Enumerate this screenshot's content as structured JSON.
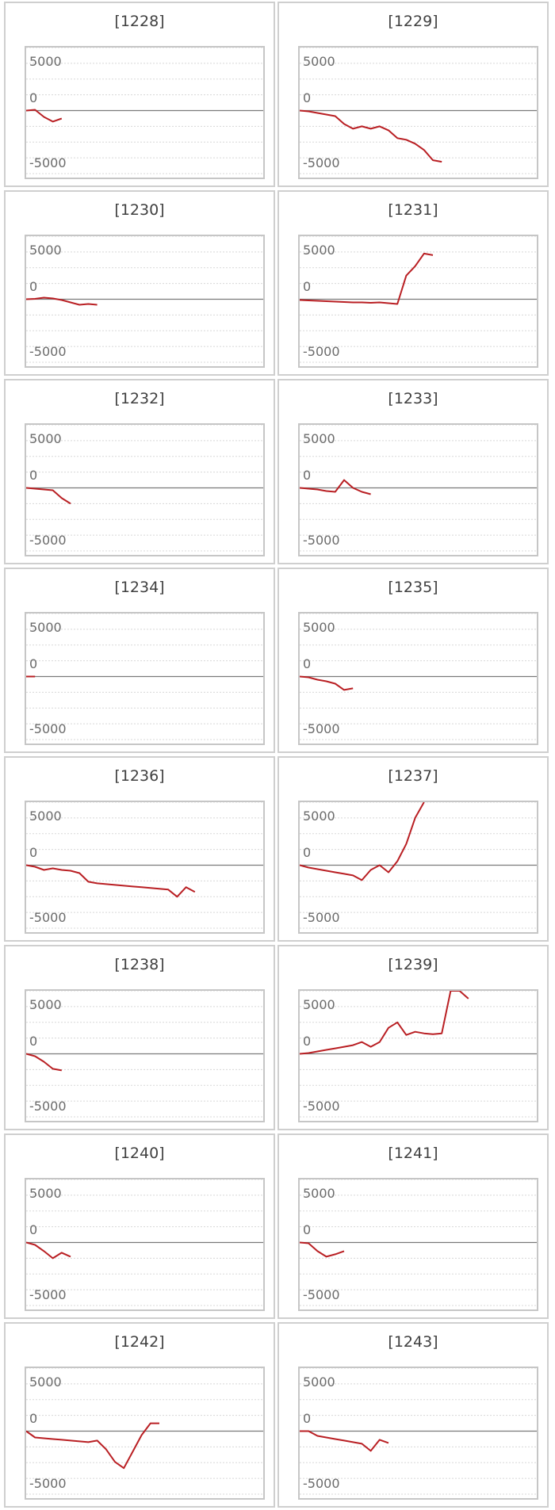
{
  "chart_data": [
    {
      "type": "line",
      "title": "[1228]",
      "ytick_labels": [
        "5000",
        "0",
        "-5000"
      ],
      "ylim": [
        -8500,
        8000
      ],
      "series": [
        {
          "values": [
            0,
            100,
            -800,
            -1400,
            -1000
          ]
        }
      ]
    },
    {
      "type": "line",
      "title": "[1229]",
      "ytick_labels": [
        "5000",
        "0",
        "-5000"
      ],
      "ylim": [
        -8500,
        8000
      ],
      "series": [
        {
          "values": [
            0,
            -100,
            -300,
            -500,
            -700,
            -1700,
            -2300,
            -2000,
            -2300,
            -2000,
            -2500,
            -3500,
            -3700,
            -4200,
            -5000,
            -6300,
            -6500
          ]
        }
      ]
    },
    {
      "type": "line",
      "title": "[1230]",
      "ytick_labels": [
        "5000",
        "0",
        "-5000"
      ],
      "ylim": [
        -8500,
        8000
      ],
      "series": [
        {
          "values": [
            0,
            50,
            200,
            100,
            -100,
            -400,
            -700,
            -600,
            -700
          ]
        }
      ]
    },
    {
      "type": "line",
      "title": "[1231]",
      "ytick_labels": [
        "5000",
        "0",
        "-5000"
      ],
      "ylim": [
        -8500,
        8000
      ],
      "series": [
        {
          "values": [
            -100,
            -150,
            -200,
            -250,
            -300,
            -350,
            -400,
            -400,
            -450,
            -400,
            -500,
            -600,
            3000,
            4200,
            5800,
            5600
          ]
        }
      ]
    },
    {
      "type": "line",
      "title": "[1232]",
      "ytick_labels": [
        "5000",
        "0",
        "-5000"
      ],
      "ylim": [
        -8500,
        8000
      ],
      "series": [
        {
          "values": [
            0,
            -100,
            -200,
            -300,
            -1300,
            -2000
          ]
        }
      ]
    },
    {
      "type": "line",
      "title": "[1233]",
      "ytick_labels": [
        "5000",
        "0",
        "-5000"
      ],
      "ylim": [
        -8500,
        8000
      ],
      "series": [
        {
          "values": [
            0,
            -100,
            -200,
            -400,
            -500,
            1000,
            0,
            -500,
            -800
          ]
        }
      ]
    },
    {
      "type": "line",
      "title": "[1234]",
      "ytick_labels": [
        "5000",
        "0",
        "-5000"
      ],
      "ylim": [
        -8500,
        8000
      ],
      "series": [
        {
          "values": [
            0,
            0
          ]
        }
      ]
    },
    {
      "type": "line",
      "title": "[1235]",
      "ytick_labels": [
        "5000",
        "0",
        "-5000"
      ],
      "ylim": [
        -8500,
        8000
      ],
      "series": [
        {
          "values": [
            0,
            -100,
            -400,
            -600,
            -900,
            -1700,
            -1500
          ]
        }
      ]
    },
    {
      "type": "line",
      "title": "[1236]",
      "ytick_labels": [
        "5000",
        "0",
        "-5000"
      ],
      "ylim": [
        -8500,
        8000
      ],
      "series": [
        {
          "values": [
            0,
            -200,
            -600,
            -400,
            -600,
            -700,
            -1000,
            -2100,
            -2300,
            -2400,
            -2500,
            -2600,
            -2700,
            -2800,
            -2900,
            -3000,
            -3100,
            -4000,
            -2800,
            -3400
          ]
        }
      ]
    },
    {
      "type": "line",
      "title": "[1237]",
      "ytick_labels": [
        "5000",
        "0",
        "-5000"
      ],
      "ylim": [
        -8500,
        8000
      ],
      "series": [
        {
          "values": [
            0,
            -300,
            -500,
            -700,
            -900,
            -1100,
            -1300,
            -1900,
            -600,
            0,
            -900,
            500,
            2700,
            6000,
            8000
          ]
        }
      ]
    },
    {
      "type": "line",
      "title": "[1238]",
      "ytick_labels": [
        "5000",
        "0",
        "-5000"
      ],
      "ylim": [
        -8500,
        8000
      ],
      "series": [
        {
          "values": [
            0,
            -300,
            -1000,
            -1900,
            -2100
          ]
        }
      ]
    },
    {
      "type": "line",
      "title": "[1239]",
      "ytick_labels": [
        "5000",
        "0",
        "-5000"
      ],
      "ylim": [
        -8500,
        8000
      ],
      "series": [
        {
          "values": [
            0,
            100,
            300,
            500,
            700,
            900,
            1100,
            1500,
            900,
            1500,
            3300,
            4000,
            2400,
            2800,
            2600,
            2500,
            2600,
            8000,
            8000,
            7000
          ]
        }
      ]
    },
    {
      "type": "line",
      "title": "[1240]",
      "ytick_labels": [
        "5000",
        "0",
        "-5000"
      ],
      "ylim": [
        -8500,
        8000
      ],
      "series": [
        {
          "values": [
            0,
            -300,
            -1100,
            -2000,
            -1300,
            -1800
          ]
        }
      ]
    },
    {
      "type": "line",
      "title": "[1241]",
      "ytick_labels": [
        "5000",
        "0",
        "-5000"
      ],
      "ylim": [
        -8500,
        8000
      ],
      "series": [
        {
          "values": [
            0,
            -100,
            -1100,
            -1800,
            -1500,
            -1100
          ]
        }
      ]
    },
    {
      "type": "line",
      "title": "[1242]",
      "ytick_labels": [
        "5000",
        "0",
        "-5000"
      ],
      "ylim": [
        -8500,
        8000
      ],
      "series": [
        {
          "values": [
            0,
            -800,
            -900,
            -1000,
            -1100,
            -1200,
            -1300,
            -1400,
            -1200,
            -2300,
            -3900,
            -4700,
            -2600,
            -500,
            1000,
            1000
          ]
        }
      ]
    },
    {
      "type": "line",
      "title": "[1243]",
      "ytick_labels": [
        "5000",
        "0",
        "-5000"
      ],
      "ylim": [
        -8500,
        8000
      ],
      "series": [
        {
          "values": [
            0,
            0,
            -600,
            -800,
            -1000,
            -1200,
            -1400,
            -1600,
            -2500,
            -1100,
            -1500
          ]
        }
      ]
    }
  ]
}
